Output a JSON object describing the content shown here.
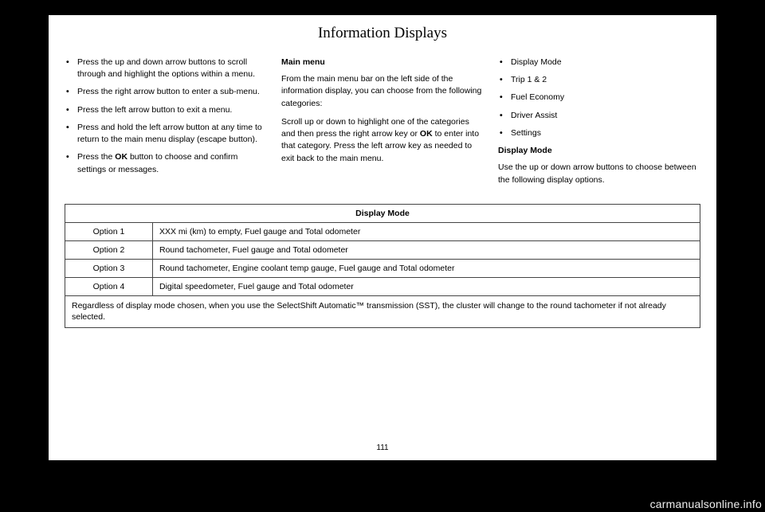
{
  "header": {
    "title": "Information Displays"
  },
  "col1": {
    "bullets": [
      "Press the up and down arrow buttons to scroll through and highlight the options within a menu.",
      "Press the right arrow button to enter a sub-menu.",
      "Press the left arrow button to exit a menu.",
      "Press and hold the left arrow button at any time to return to the main menu display (escape button).",
      "Press the <b>OK</b> button to choose and confirm settings or messages."
    ]
  },
  "col2": {
    "heading": "Main menu",
    "p1": "From the main menu bar on the left side of the information display, you can choose from the following categories:",
    "p2": "Scroll up or down to highlight one of the categories and then press the right arrow key or <b>OK</b> to enter into that category. Press the left arrow key as needed to exit back to the main menu."
  },
  "col3": {
    "bullets": [
      "Display Mode",
      "Trip 1 & 2",
      "Fuel Economy",
      "Driver Assist",
      "Settings"
    ],
    "heading": "Display Mode",
    "p1": "Use the up or down arrow buttons to choose between the following display options."
  },
  "table": {
    "title": "Display Mode",
    "rows": [
      [
        "Option 1",
        "XXX mi (km) to empty, Fuel gauge and Total odometer"
      ],
      [
        "Option 2",
        "Round tachometer, Fuel gauge and Total odometer"
      ],
      [
        "Option 3",
        "Round tachometer, Engine coolant temp gauge, Fuel gauge and Total odometer"
      ],
      [
        "Option 4",
        "Digital speedometer, Fuel gauge and Total odometer"
      ]
    ],
    "footer": "Regardless of display mode chosen, when you use the SelectShift Automatic™ transmission (SST), the cluster will change to the round tachometer if not already selected."
  },
  "pagenum": "111",
  "watermark": "carmanualsonline.info"
}
